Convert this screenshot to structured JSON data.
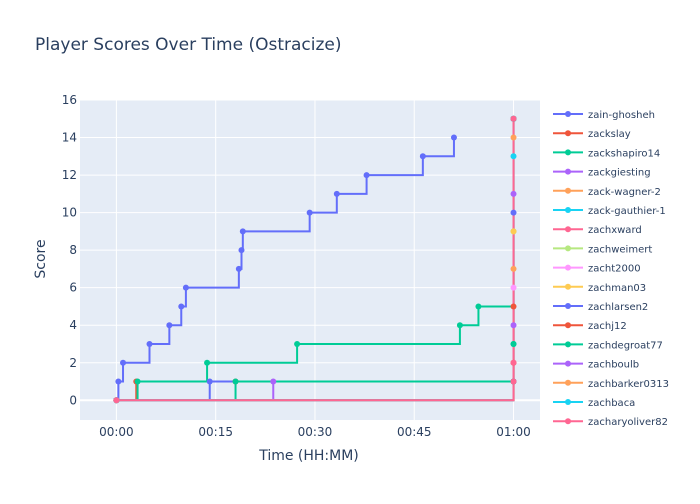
{
  "chart_data": {
    "type": "line",
    "line_shape": "step",
    "title": "Player Scores Over Time (Ostracize)",
    "xlabel": "Time (HH:MM)",
    "ylabel": "Score",
    "x_unit": "minutes",
    "xlim": [
      -5.5,
      64
    ],
    "ylim": [
      -1.05,
      16
    ],
    "x_ticks": [
      {
        "value": 0,
        "label": "00:00"
      },
      {
        "value": 15,
        "label": "00:15"
      },
      {
        "value": 30,
        "label": "00:30"
      },
      {
        "value": 45,
        "label": "00:45"
      },
      {
        "value": 60,
        "label": "01:00"
      }
    ],
    "y_ticks": [
      0,
      2,
      4,
      6,
      8,
      10,
      12,
      14,
      16
    ],
    "grid": true,
    "plot_bgcolor": "#E5ECF6",
    "legend_position": "right",
    "series": [
      {
        "name": "zain-ghosheh",
        "color": "#636EFA",
        "x": [
          0,
          0.3,
          1.0,
          5.0,
          8.0,
          9.8,
          10.5,
          18.5,
          18.9,
          19.1,
          29.2,
          33.3,
          37.8,
          46.3,
          51.0
        ],
        "y": [
          0,
          1,
          2,
          3,
          4,
          5,
          6,
          7,
          8,
          9,
          10,
          11,
          12,
          13,
          14
        ]
      },
      {
        "name": "zackslay",
        "color": "#EF553B",
        "x": [
          0,
          3.0,
          18.0,
          60.0,
          60.0,
          60.0
        ],
        "y": [
          0,
          1,
          1,
          1,
          2,
          15
        ]
      },
      {
        "name": "zackshapiro14",
        "color": "#00CC96",
        "x": [
          0,
          3.2,
          13.7,
          27.3,
          51.9,
          54.7,
          60.0,
          60.0
        ],
        "y": [
          0,
          1,
          2,
          3,
          4,
          5,
          3,
          15
        ]
      },
      {
        "name": "zackgiesting",
        "color": "#AB63FA",
        "x": [
          0,
          23.7,
          60.0,
          60.0
        ],
        "y": [
          0,
          1,
          4,
          15
        ]
      },
      {
        "name": "zack-wagner-2",
        "color": "#FFA15A",
        "x": [
          0,
          60.0,
          60.0
        ],
        "y": [
          0,
          1,
          14
        ]
      },
      {
        "name": "zack-gauthier-1",
        "color": "#19D3F3",
        "x": [
          0,
          60.0,
          60.0
        ],
        "y": [
          0,
          1,
          15
        ]
      },
      {
        "name": "zachxward",
        "color": "#FF6692",
        "x": [
          0,
          60.0,
          60.0
        ],
        "y": [
          0,
          2,
          15
        ]
      },
      {
        "name": "zachweimert",
        "color": "#B6E880",
        "x": [
          0,
          60.0,
          60.0
        ],
        "y": [
          0,
          1,
          9
        ]
      },
      {
        "name": "zacht2000",
        "color": "#FF97FF",
        "x": [
          0,
          60.0,
          60.0
        ],
        "y": [
          0,
          1,
          6
        ]
      },
      {
        "name": "zachman03",
        "color": "#FECB52",
        "x": [
          0,
          60.0,
          60.0
        ],
        "y": [
          0,
          1,
          9
        ]
      },
      {
        "name": "zachlarsen2",
        "color": "#636EFA",
        "x": [
          0,
          14.1,
          60.0,
          60.0
        ],
        "y": [
          0,
          1,
          1,
          10
        ]
      },
      {
        "name": "zachj12",
        "color": "#EF553B",
        "x": [
          0,
          60.0,
          60.0
        ],
        "y": [
          0,
          1,
          5
        ]
      },
      {
        "name": "zachdegroat77",
        "color": "#00CC96",
        "x": [
          0,
          18.0,
          60.0,
          60.0
        ],
        "y": [
          0,
          1,
          3,
          15
        ]
      },
      {
        "name": "zachboulb",
        "color": "#AB63FA",
        "x": [
          0,
          60.0,
          60.0
        ],
        "y": [
          0,
          1,
          11
        ]
      },
      {
        "name": "zachbarker0313",
        "color": "#FFA15A",
        "x": [
          0,
          60.0,
          60.0
        ],
        "y": [
          0,
          1,
          7
        ]
      },
      {
        "name": "zachbaca",
        "color": "#19D3F3",
        "x": [
          0,
          60.0,
          60.0
        ],
        "y": [
          0,
          1,
          13
        ]
      },
      {
        "name": "zacharyoliver82",
        "color": "#FF6692",
        "x": [
          0,
          60.0,
          60.0
        ],
        "y": [
          0,
          1,
          15
        ]
      }
    ]
  }
}
